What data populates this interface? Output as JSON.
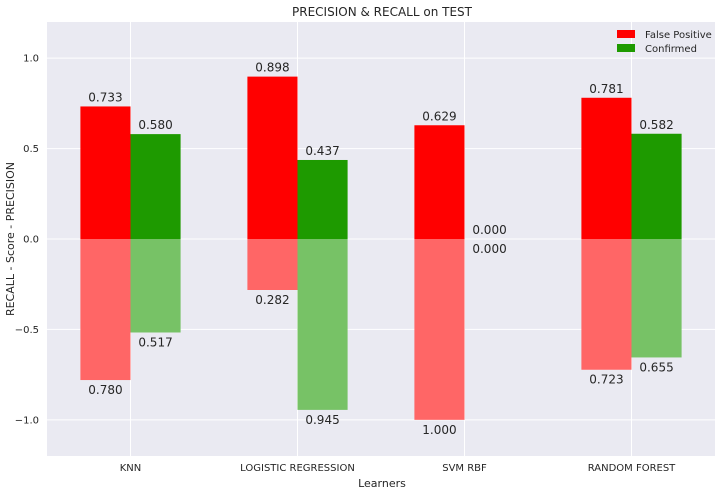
{
  "chart_data": {
    "type": "bar",
    "title": "PRECISION & RECALL on TEST",
    "xlabel": "Learners",
    "ylabel": "RECALL - Score - PRECISION",
    "categories": [
      "KNN",
      "LOGISTIC REGRESSION",
      "SVM RBF",
      "RANDOM FOREST"
    ],
    "ylim": [
      -1.2,
      1.2
    ],
    "yticks": [
      -1.0,
      -0.5,
      0.0,
      0.5,
      1.0
    ],
    "ytick_labels": [
      "−1.0",
      "−0.5",
      "0.0",
      "0.5",
      "1.0"
    ],
    "grid": true,
    "legend_position": "top-right",
    "series": [
      {
        "name": "False Positive",
        "color": "#ff0000",
        "light_color": "#ff6666",
        "precision": [
          0.733,
          0.898,
          0.629,
          0.781
        ],
        "precision_labels": [
          "0.733",
          "0.898",
          "0.629",
          "0.781"
        ],
        "recall": [
          0.78,
          0.282,
          1.0,
          0.723
        ],
        "recall_labels": [
          "0.780",
          "0.282",
          "1.000",
          "0.723"
        ]
      },
      {
        "name": "Confirmed",
        "color": "#1e9a00",
        "light_color": "#77c266",
        "precision": [
          0.58,
          0.437,
          0.0,
          0.582
        ],
        "precision_labels": [
          "0.580",
          "0.437",
          "0.000",
          "0.582"
        ],
        "recall": [
          0.517,
          0.945,
          0.0,
          0.655
        ],
        "recall_labels": [
          "0.517",
          "0.945",
          "0.000",
          "0.655"
        ]
      }
    ]
  }
}
